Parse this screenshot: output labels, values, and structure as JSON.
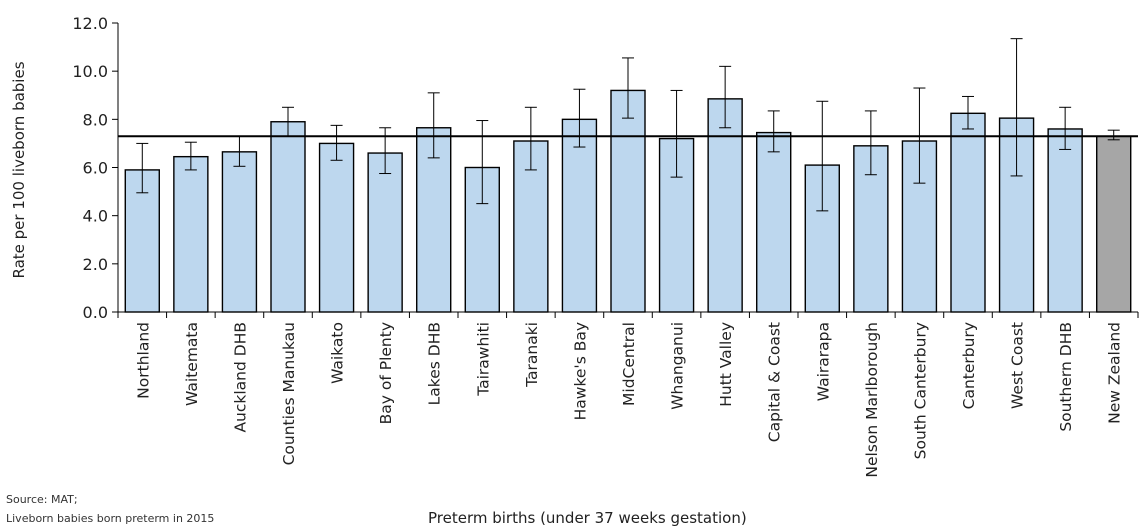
{
  "chart_data": {
    "type": "bar",
    "title": "",
    "xlabel": "Preterm births (under 37 weeks gestation)",
    "ylabel": "Rate per 100 liveborn babies",
    "ylim": [
      0,
      12
    ],
    "yticks": [
      "0.0",
      "2.0",
      "4.0",
      "6.0",
      "8.0",
      "10.0",
      "12.0"
    ],
    "reference_line": 7.3,
    "categories": [
      "Northland",
      "Waitemata",
      "Auckland DHB",
      "Counties Manukau",
      "Waikato",
      "Bay of Plenty",
      "Lakes DHB",
      "Tairawhiti",
      "Taranaki",
      "Hawke's Bay",
      "MidCentral",
      "Whanganui",
      "Hutt Valley",
      "Capital & Coast",
      "Wairarapa",
      "Nelson Marlborough",
      "South Canterbury",
      "Canterbury",
      "West Coast",
      "Southern DHB",
      "New Zealand"
    ],
    "values": [
      5.9,
      6.45,
      6.65,
      7.9,
      7.0,
      6.6,
      7.65,
      6.0,
      7.1,
      8.0,
      9.2,
      7.2,
      8.85,
      7.45,
      6.1,
      6.9,
      7.1,
      8.25,
      8.05,
      7.6,
      7.3
    ],
    "error_low": [
      4.95,
      5.9,
      6.05,
      7.3,
      6.3,
      5.75,
      6.4,
      4.5,
      5.9,
      6.85,
      8.05,
      5.6,
      7.65,
      6.65,
      4.2,
      5.7,
      5.35,
      7.6,
      5.65,
      6.75,
      7.15
    ],
    "error_high": [
      7.0,
      7.05,
      7.3,
      8.5,
      7.75,
      7.65,
      9.1,
      7.95,
      8.5,
      9.25,
      10.55,
      9.2,
      10.2,
      8.35,
      8.75,
      8.35,
      9.3,
      8.95,
      11.35,
      8.5,
      7.55
    ],
    "colors": {
      "bar": "#bdd7ee",
      "highlight": "#a6a6a6",
      "stroke": "#000000"
    },
    "highlight_category": "New Zealand",
    "grid": false,
    "legend": "none"
  },
  "notes": [
    "Source: MAT;",
    "Liveborn babies born preterm in 2015"
  ]
}
